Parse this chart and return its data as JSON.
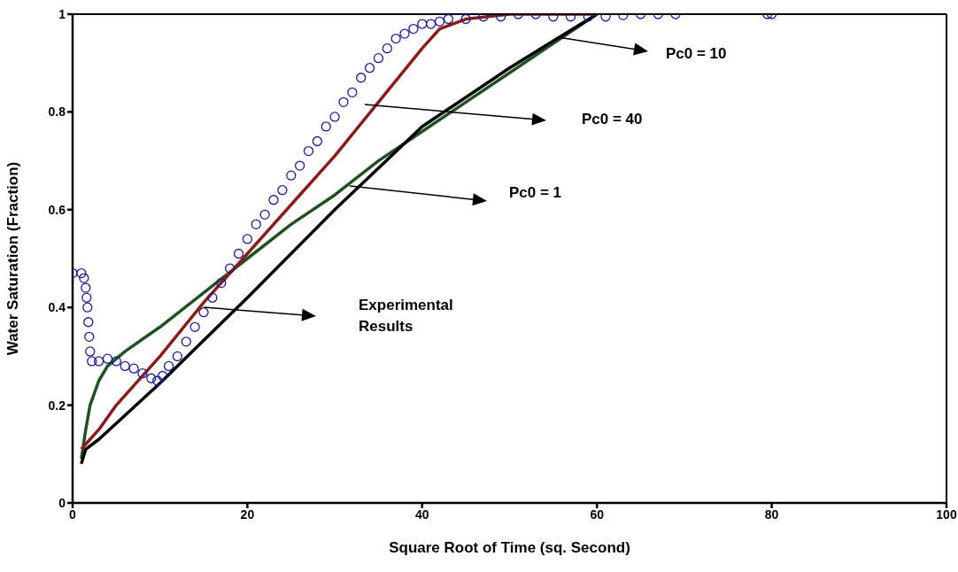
{
  "chart_data": {
    "type": "line",
    "xlabel": "Square Root of Time (sq. Second)",
    "ylabel": "Water Saturation (Fraction)",
    "xlim": [
      0,
      100
    ],
    "xticks": [
      0,
      20,
      40,
      60,
      80,
      100
    ],
    "ylim": [
      0,
      1
    ],
    "yticks": [
      0,
      0.2,
      0.4,
      0.6,
      0.8,
      1
    ],
    "grid": false,
    "legend": false,
    "marker": "none",
    "line_style": "solid",
    "series": [
      {
        "type": "scatter",
        "marker": "circle",
        "color": "#1a1a9a",
        "x": [
          0,
          1,
          1.3,
          1.5,
          1.6,
          1.7,
          1.8,
          1.9,
          2.0,
          2.2,
          3,
          4,
          5,
          6,
          7,
          8,
          9,
          9.7,
          10.3,
          11,
          12,
          13,
          14,
          15,
          16,
          17,
          18,
          19,
          20,
          21,
          22,
          23,
          24,
          25,
          26,
          27,
          28,
          29,
          30,
          31,
          32,
          33,
          34,
          35,
          36,
          37,
          38,
          39,
          40,
          41,
          42,
          43,
          45,
          47,
          49,
          51,
          53,
          55,
          57,
          59,
          61,
          63,
          65,
          67,
          69,
          79.5,
          80
        ],
        "values": [
          0.47,
          0.47,
          0.46,
          0.44,
          0.42,
          0.4,
          0.37,
          0.34,
          0.31,
          0.29,
          0.29,
          0.295,
          0.29,
          0.28,
          0.275,
          0.265,
          0.255,
          0.25,
          0.26,
          0.28,
          0.3,
          0.33,
          0.36,
          0.39,
          0.42,
          0.45,
          0.48,
          0.51,
          0.54,
          0.57,
          0.59,
          0.62,
          0.64,
          0.67,
          0.69,
          0.72,
          0.74,
          0.77,
          0.79,
          0.82,
          0.84,
          0.87,
          0.89,
          0.91,
          0.93,
          0.95,
          0.96,
          0.97,
          0.98,
          0.98,
          0.985,
          0.99,
          0.99,
          0.995,
          0.995,
          1,
          1,
          0.995,
          0.995,
          0.995,
          0.995,
          0.998,
          1,
          1,
          1,
          1,
          1
        ]
      },
      {
        "color": "#215021",
        "x": [
          1,
          1.5,
          2,
          3,
          4,
          6,
          10,
          15,
          20,
          25,
          30,
          35,
          40,
          45,
          50,
          55,
          60
        ],
        "values": [
          0.09,
          0.15,
          0.2,
          0.25,
          0.28,
          0.31,
          0.36,
          0.43,
          0.5,
          0.57,
          0.63,
          0.7,
          0.76,
          0.82,
          0.88,
          0.94,
          1
        ]
      },
      {
        "color": "#000000",
        "x": [
          1,
          1.5,
          3,
          10,
          20,
          30,
          40,
          50,
          55,
          60
        ],
        "values": [
          0.08,
          0.11,
          0.13,
          0.245,
          0.42,
          0.6,
          0.77,
          0.89,
          0.945,
          1
        ]
      },
      {
        "color": "#8b1a1a",
        "x": [
          1,
          3,
          5,
          10,
          15,
          20,
          25,
          30,
          35,
          40,
          42,
          45,
          50,
          60
        ],
        "values": [
          0.11,
          0.15,
          0.2,
          0.3,
          0.41,
          0.51,
          0.61,
          0.71,
          0.82,
          0.93,
          0.97,
          0.99,
          1,
          1
        ]
      }
    ],
    "annotations": [
      "Pc0 = 10",
      "Pc0 = 40",
      "Pc0 = 1",
      "Experimental Results"
    ]
  }
}
